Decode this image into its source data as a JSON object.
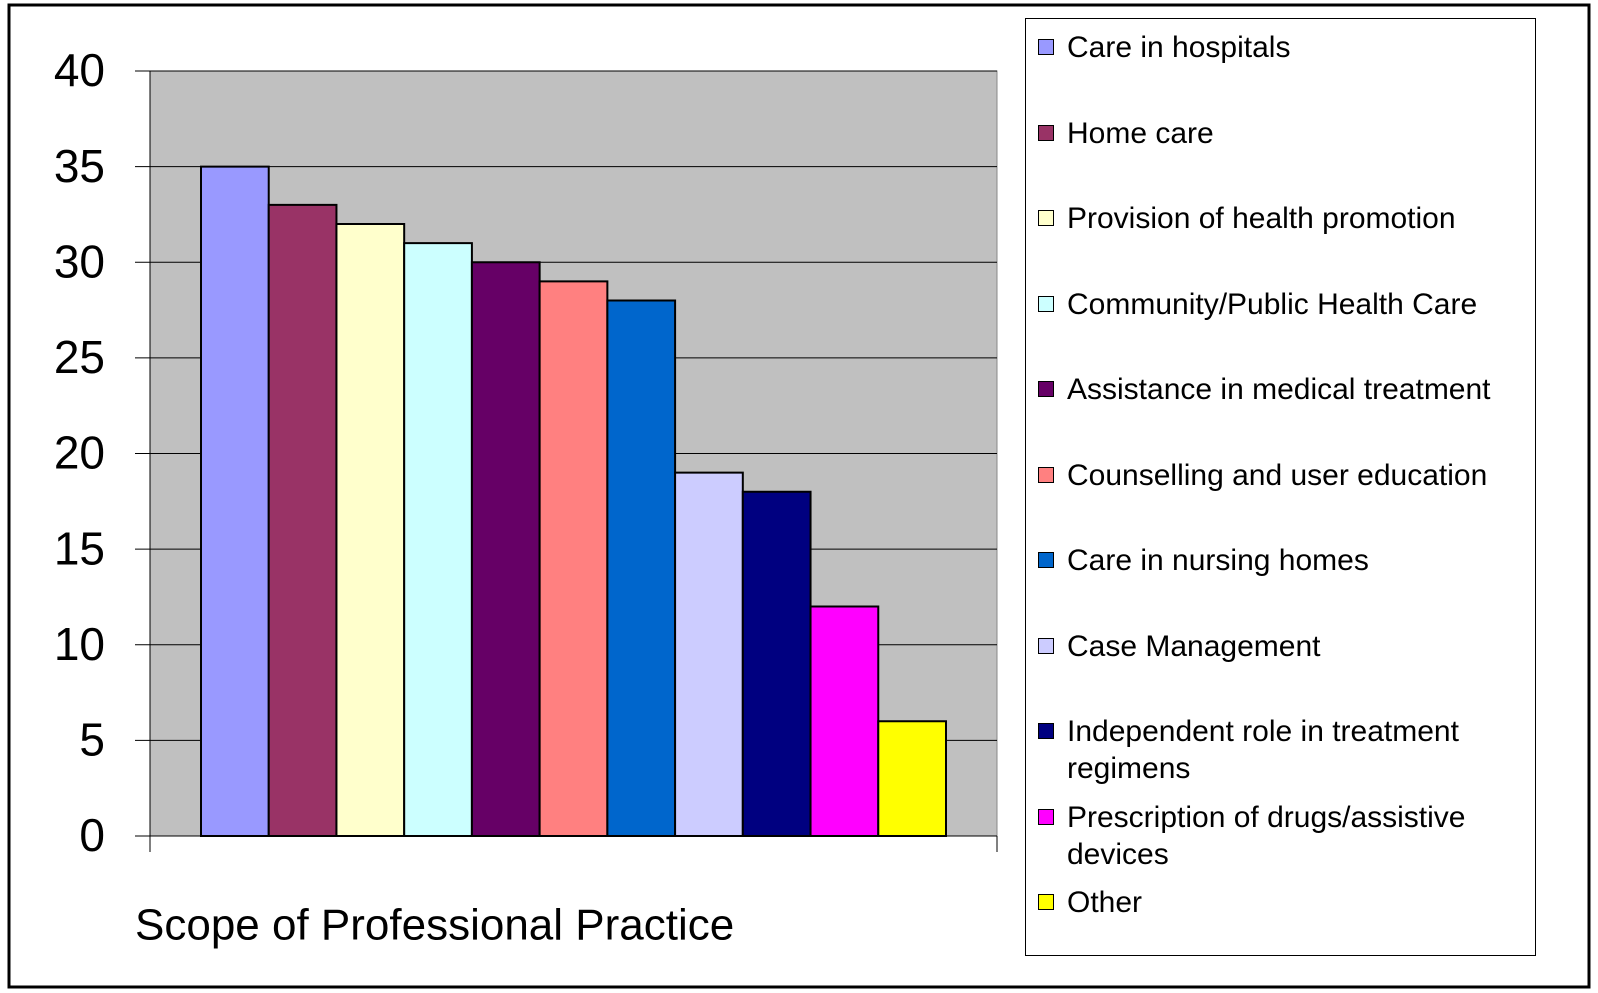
{
  "chart_data": {
    "type": "bar",
    "x_label": "Scope of Professional Practice",
    "ylim": [
      0,
      40
    ],
    "yticks": [
      0,
      5,
      10,
      15,
      20,
      25,
      30,
      35,
      40
    ],
    "grid": true,
    "series": [
      {
        "name": "Care in hospitals",
        "color": "#9999ff",
        "values": [
          35
        ]
      },
      {
        "name": "Home care",
        "color": "#993366",
        "values": [
          33
        ]
      },
      {
        "name": "Provision of health promotion",
        "color": "#ffffcc",
        "values": [
          32
        ]
      },
      {
        "name": "Community/Public Health Care",
        "color": "#ccffff",
        "values": [
          31
        ]
      },
      {
        "name": "Assistance in medical treatment",
        "color": "#660066",
        "values": [
          30
        ]
      },
      {
        "name": "Counselling and user education",
        "color": "#ff8080",
        "values": [
          29
        ]
      },
      {
        "name": "Care in nursing homes",
        "color": "#0066cc",
        "values": [
          28
        ]
      },
      {
        "name": "Case Management",
        "color": "#ccccff",
        "values": [
          19
        ]
      },
      {
        "name": "Independent role in treatment regimens",
        "color": "#000080",
        "values": [
          18
        ]
      },
      {
        "name": "Prescription of drugs/assistive devices",
        "color": "#ff00ff",
        "values": [
          12
        ]
      },
      {
        "name": "Other",
        "color": "#ffff00",
        "values": [
          6
        ]
      }
    ]
  }
}
